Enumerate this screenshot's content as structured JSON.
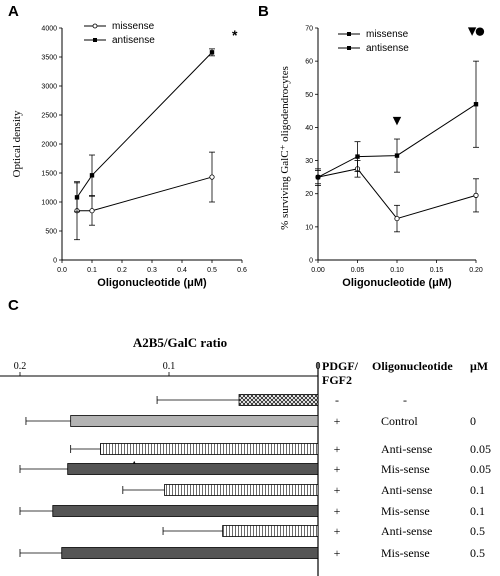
{
  "panel_a": {
    "letter": "A",
    "star": "*",
    "legend": [
      "missense",
      "antisense"
    ]
  },
  "panel_b": {
    "letter": "B",
    "legend": [
      "missense",
      "antisense"
    ],
    "marker_symbols": [
      "▼",
      "●"
    ]
  },
  "panel_c": {
    "letter": "C",
    "title": "A2B5/GalC ratio",
    "col_pdgf": "PDGF/",
    "col_pdgf2": "FGF2",
    "col_oligo": "Oligonucleotide",
    "col_um": "μM",
    "marker": "▲"
  },
  "chart_data": [
    {
      "type": "line",
      "panel": "A",
      "xlabel": "Oligonucleotide (μM)",
      "ylabel": "Optical density",
      "xlim": [
        0,
        0.6
      ],
      "ylim": [
        0,
        4000
      ],
      "xticks": [
        "0.0",
        "0.1",
        "0.2",
        "0.3",
        "0.4",
        "0.5",
        "0.6"
      ],
      "yticks": [
        "0",
        "500",
        "1000",
        "1500",
        "2000",
        "2500",
        "3000",
        "3500",
        "4000"
      ],
      "legend_position": "top-left",
      "series": [
        {
          "name": "missense",
          "marker": "open-circle",
          "x": [
            0.05,
            0.1,
            0.5
          ],
          "y": [
            850,
            850,
            1430
          ],
          "err": [
            500,
            250,
            430
          ]
        },
        {
          "name": "antisense",
          "marker": "filled-square",
          "x": [
            0.05,
            0.1,
            0.5
          ],
          "y": [
            1080,
            1460,
            3580
          ],
          "err": [
            250,
            350,
            60
          ]
        }
      ],
      "annotations": [
        {
          "text": "*",
          "x": 0.5,
          "y": 3800
        }
      ]
    },
    {
      "type": "line",
      "panel": "B",
      "xlabel": "Oligonucleotide (μM)",
      "ylabel": "% surviving GalC⁺ oligodendrocytes",
      "xlim": [
        0,
        0.2
      ],
      "ylim": [
        0,
        70
      ],
      "xticks": [
        "0.00",
        "0.05",
        "0.10",
        "0.15",
        "0.20"
      ],
      "yticks": [
        "0",
        "10",
        "20",
        "30",
        "40",
        "50",
        "60",
        "70"
      ],
      "legend_position": "top-left",
      "series": [
        {
          "name": "missense",
          "marker": "open-circle",
          "x": [
            0,
            0.05,
            0.1,
            0.2
          ],
          "y": [
            25,
            27.5,
            12.5,
            19.5
          ],
          "err": [
            2,
            2.5,
            4,
            5
          ]
        },
        {
          "name": "antisense",
          "marker": "filled-square",
          "x": [
            0,
            0.05,
            0.1,
            0.2
          ],
          "y": [
            25,
            31.2,
            31.5,
            47
          ],
          "err": [
            2.5,
            4.5,
            5,
            13
          ]
        }
      ],
      "annotations": [
        {
          "text": "▼",
          "x": 0.1,
          "y": 41
        },
        {
          "text": "▼",
          "x": 0.195,
          "y": 68
        },
        {
          "text": "●",
          "x": 0.205,
          "y": 68
        }
      ]
    },
    {
      "type": "bar",
      "panel": "C",
      "orientation": "horizontal-reversed",
      "title": "A2B5/GalC ratio",
      "xlim": [
        0,
        0.2
      ],
      "xticks": [
        "0.2",
        "0.1",
        "0"
      ],
      "rows": [
        {
          "pdgf": "-",
          "oligo": "-",
          "um": "",
          "value": 0.053,
          "err": 0.055,
          "fill": "crosshatch"
        },
        {
          "pdgf": "+",
          "oligo": "Control",
          "um": "0",
          "value": 0.166,
          "err": 0.03,
          "fill": "lightgray"
        },
        {
          "pdgf": "+",
          "oligo": "Anti-sense",
          "um": "0.05",
          "value": 0.146,
          "err": 0.02,
          "fill": "stripes"
        },
        {
          "pdgf": "+",
          "oligo": "Mis-sense",
          "um": "0.05",
          "value": 0.168,
          "err": 0.032,
          "fill": "dark"
        },
        {
          "pdgf": "+",
          "oligo": "Anti-sense",
          "um": "0.1",
          "value": 0.103,
          "err": 0.028,
          "fill": "stripes"
        },
        {
          "pdgf": "+",
          "oligo": "Mis-sense",
          "um": "0.1",
          "value": 0.178,
          "err": 0.028,
          "fill": "dark"
        },
        {
          "pdgf": "+",
          "oligo": "Anti-sense",
          "um": "0.5",
          "value": 0.064,
          "err": 0.04,
          "fill": "stripes"
        },
        {
          "pdgf": "+",
          "oligo": "Mis-sense",
          "um": "0.5",
          "value": 0.172,
          "err": 0.03,
          "fill": "dark"
        }
      ]
    }
  ]
}
